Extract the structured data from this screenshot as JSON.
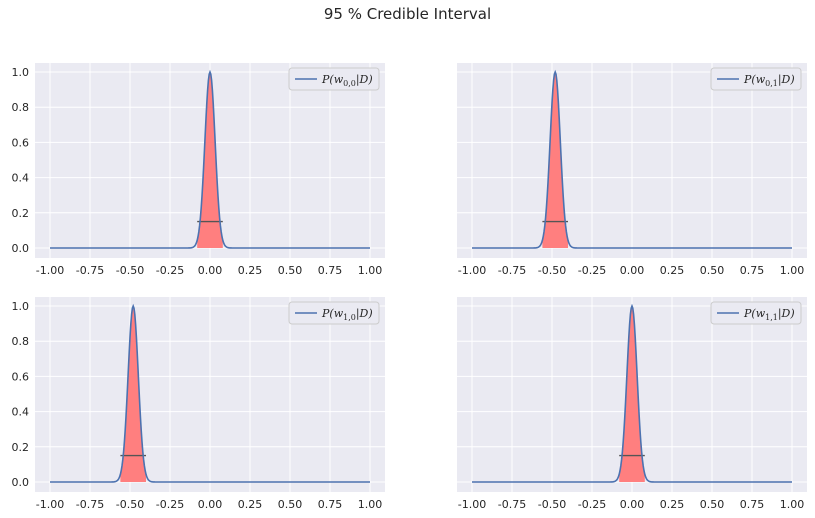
{
  "figure": {
    "title": "95 % Credible Interval",
    "colors": {
      "background": "#eaeaf2",
      "grid": "#ffffff",
      "curve": "#4c72b0",
      "interval_fill": "#ff7f7f",
      "interval_line": "#555555"
    }
  },
  "chart_data": [
    {
      "type": "line",
      "legend": {
        "label": "P(w0,0|D)",
        "base": "P(w",
        "sub": "0,0",
        "suffix": "|D)",
        "placement": "top-right"
      },
      "xticks": [
        "-1.00",
        "-0.75",
        "-0.50",
        "-0.25",
        "0.00",
        "0.25",
        "0.50",
        "0.75",
        "1.00"
      ],
      "yticks": [
        "0.0",
        "0.2",
        "0.4",
        "0.6",
        "0.8",
        "1.0"
      ],
      "show_yticks": true,
      "xlim": [
        -1.0,
        1.0
      ],
      "ylim": [
        0.0,
        1.0
      ],
      "grid": true,
      "curve": {
        "mean": 0.0,
        "sd": 0.032
      },
      "interval": [
        -0.08,
        0.08
      ],
      "interval_line_y": 0.15
    },
    {
      "type": "line",
      "legend": {
        "label": "P(w0,1|D)",
        "base": "P(w",
        "sub": "0,1",
        "suffix": "|D)",
        "placement": "top-right"
      },
      "xticks": [
        "-1.00",
        "-0.75",
        "-0.50",
        "-0.25",
        "0.00",
        "0.25",
        "0.50",
        "0.75",
        "1.00"
      ],
      "yticks": [],
      "show_yticks": false,
      "xlim": [
        -1.0,
        1.0
      ],
      "ylim": [
        0.0,
        1.0
      ],
      "grid": true,
      "curve": {
        "mean": -0.48,
        "sd": 0.032
      },
      "interval": [
        -0.56,
        -0.4
      ],
      "interval_line_y": 0.15
    },
    {
      "type": "line",
      "legend": {
        "label": "P(w1,0|D)",
        "base": "P(w",
        "sub": "1,0",
        "suffix": "|D)",
        "placement": "top-right"
      },
      "xticks": [
        "-1.00",
        "-0.75",
        "-0.50",
        "-0.25",
        "0.00",
        "0.25",
        "0.50",
        "0.75",
        "1.00"
      ],
      "yticks": [
        "0.0",
        "0.2",
        "0.4",
        "0.6",
        "0.8",
        "1.0"
      ],
      "show_yticks": true,
      "xlim": [
        -1.0,
        1.0
      ],
      "ylim": [
        0.0,
        1.0
      ],
      "grid": true,
      "curve": {
        "mean": -0.48,
        "sd": 0.032
      },
      "interval": [
        -0.56,
        -0.4
      ],
      "interval_line_y": 0.15
    },
    {
      "type": "line",
      "legend": {
        "label": "P(w1,1|D)",
        "base": "P(w",
        "sub": "1,1",
        "suffix": "|D)",
        "placement": "top-right"
      },
      "xticks": [
        "-1.00",
        "-0.75",
        "-0.50",
        "-0.25",
        "0.00",
        "0.25",
        "0.50",
        "0.75",
        "1.00"
      ],
      "yticks": [],
      "show_yticks": false,
      "xlim": [
        -1.0,
        1.0
      ],
      "ylim": [
        0.0,
        1.0
      ],
      "grid": true,
      "curve": {
        "mean": 0.0,
        "sd": 0.032
      },
      "interval": [
        -0.08,
        0.08
      ],
      "interval_line_y": 0.15
    }
  ]
}
